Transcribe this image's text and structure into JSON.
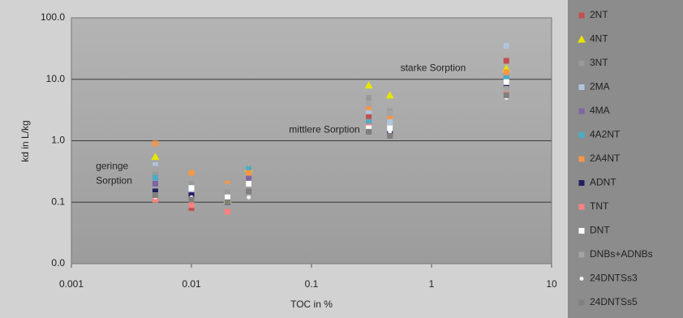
{
  "chart_data": {
    "type": "scatter",
    "x_label": "TOC in %",
    "y_label": "kd in L/kg",
    "log_x": true,
    "log_y": true,
    "grid": true,
    "xlim": [
      0.001,
      10
    ],
    "xticks": [
      0.001,
      0.01,
      0.1,
      1,
      10
    ],
    "ylim": [
      0.01,
      100
    ],
    "yticks": [
      {
        "value": 100,
        "label": "100.0"
      },
      {
        "value": 10,
        "label": "10.0"
      },
      {
        "value": 1,
        "label": "1.0"
      },
      {
        "value": 0.1,
        "label": "0.1"
      },
      {
        "value": 0.01,
        "label": "0.0"
      }
    ],
    "annotations": [
      {
        "text": "starke Sorption",
        "x": 0.55,
        "y": 15
      },
      {
        "text": "mittlere Sorption",
        "x": 0.065,
        "y": 1.5
      },
      {
        "text": "geringe",
        "x": 0.0016,
        "y": 0.38
      },
      {
        "text": "Sorption",
        "x": 0.0016,
        "y": 0.22
      }
    ],
    "legend_position": "right",
    "x": [
      0.005,
      0.01,
      0.02,
      0.03,
      0.3,
      0.45,
      4.2
    ],
    "series": [
      {
        "name": "2NT",
        "color": "#c0504d",
        "marker": "square",
        "values": [
          0.12,
          0.08,
          0.1,
          0.15,
          2.5,
          1.5,
          20
        ]
      },
      {
        "name": "4NT",
        "color": "#e6e600",
        "marker": "triangle",
        "values": [
          0.55,
          null,
          0.11,
          0.35,
          8,
          5.5,
          15
        ]
      },
      {
        "name": "3NT",
        "color": "#9a9a9a",
        "marker": "square",
        "values": [
          0.3,
          0.2,
          0.15,
          0.2,
          5,
          3,
          12
        ]
      },
      {
        "name": "2MA",
        "color": "#b0c4de",
        "marker": "square",
        "values": [
          0.4,
          0.15,
          0.12,
          0.3,
          3,
          2,
          35
        ]
      },
      {
        "name": "4MA",
        "color": "#8064a2",
        "marker": "square",
        "values": [
          0.2,
          0.13,
          0.1,
          0.25,
          1.8,
          1.5,
          10
        ]
      },
      {
        "name": "4A2NT",
        "color": "#4bacc6",
        "marker": "square",
        "values": [
          0.25,
          0.17,
          0.12,
          0.35,
          2,
          1.5,
          11
        ]
      },
      {
        "name": "2A4NT",
        "color": "#f79646",
        "marker": "square",
        "values": [
          0.9,
          0.3,
          0.2,
          0.3,
          3.5,
          2.5,
          13
        ]
      },
      {
        "name": "ADNT",
        "color": "#1f1f5f",
        "marker": "square",
        "values": [
          0.15,
          0.13,
          0.1,
          0.2,
          1.5,
          1.3,
          8
        ]
      },
      {
        "name": "TNT",
        "color": "#ff8080",
        "marker": "square",
        "values": [
          0.11,
          0.09,
          0.07,
          0.15,
          1.7,
          1.2,
          6
        ]
      },
      {
        "name": "DNT",
        "color": "#ffffff",
        "marker": "square",
        "values": [
          0.13,
          0.17,
          0.12,
          0.2,
          1.6,
          1.6,
          9
        ]
      },
      {
        "name": "DNBs+ADNBs",
        "color": "#a5a5a5",
        "marker": "square",
        "values": [
          0.35,
          null,
          0.18,
          null,
          4,
          2.8,
          7
        ]
      },
      {
        "name": "24DNTSs3",
        "color": "#f2f2f2",
        "marker": "dot",
        "values": [
          0.12,
          0.12,
          0.1,
          0.12,
          1.5,
          1.4,
          5
        ]
      },
      {
        "name": "24DNTSs5",
        "color": "#7f7f7f",
        "marker": "square",
        "values": [
          0.13,
          0.11,
          0.1,
          0.15,
          1.4,
          1.2,
          5.5
        ]
      }
    ]
  }
}
